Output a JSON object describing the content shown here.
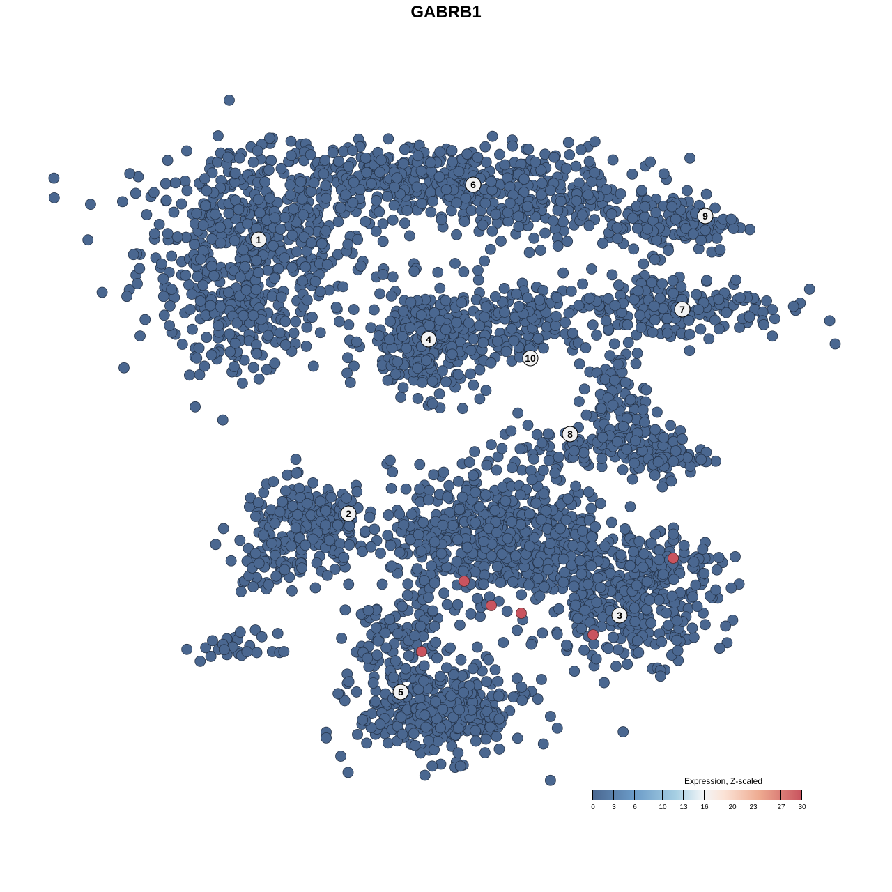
{
  "chart_data": {
    "type": "scatter",
    "title": "GABRB1",
    "xlabel": "",
    "ylabel": "",
    "xlim": [
      -48,
      48
    ],
    "ylim": [
      -48,
      48
    ],
    "grid": false,
    "point_color_default": "#4a6790",
    "point_color_high": "#c9545f",
    "cluster_labels": [
      {
        "label": "1",
        "x": -29.4,
        "y": 29.6
      },
      {
        "label": "2",
        "x": -16.5,
        "y": -9.7
      },
      {
        "label": "3",
        "x": 22.4,
        "y": -24.3
      },
      {
        "label": "4",
        "x": -5.0,
        "y": 15.3
      },
      {
        "label": "5",
        "x": -9.0,
        "y": -35.3
      },
      {
        "label": "6",
        "x": 1.4,
        "y": 37.5
      },
      {
        "label": "7",
        "x": 31.4,
        "y": 19.6
      },
      {
        "label": "8",
        "x": 15.3,
        "y": 1.7
      },
      {
        "label": "9",
        "x": 34.7,
        "y": 33.0
      },
      {
        "label": "10",
        "x": 9.6,
        "y": 12.6
      }
    ],
    "high_expression_points": [
      {
        "x": 0.1,
        "y": -19.4,
        "value": 30
      },
      {
        "x": 4.0,
        "y": -22.9,
        "value": 30
      },
      {
        "x": 8.3,
        "y": -24.0,
        "value": 30
      },
      {
        "x": 18.6,
        "y": -27.1,
        "value": 30
      },
      {
        "x": 30.1,
        "y": -16.1,
        "value": 30
      },
      {
        "x": -6.0,
        "y": -29.5,
        "value": 30
      }
    ],
    "other_points_value": 0,
    "legend": {
      "title": "Expression, Z-scaled",
      "placement": "bottom-right",
      "ticks": [
        "0",
        "3",
        "6",
        "10",
        "13",
        "16",
        "20",
        "23",
        "27",
        "30"
      ],
      "tick_values": [
        0,
        3,
        6,
        10,
        13,
        16,
        20,
        23,
        27,
        30
      ]
    }
  }
}
